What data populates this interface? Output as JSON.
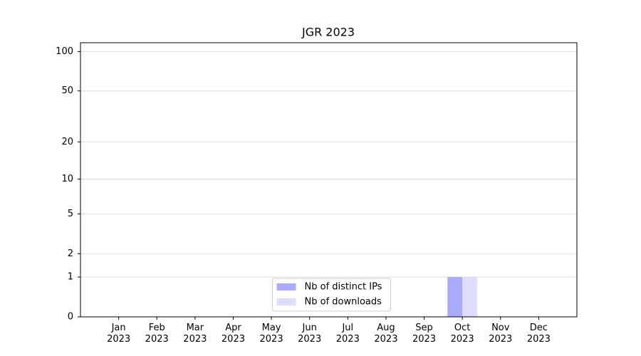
{
  "chart_data": {
    "type": "bar",
    "title": "JGR 2023",
    "categories": [
      "Jan\n2023",
      "Feb\n2023",
      "Mar\n2023",
      "Apr\n2023",
      "May\n2023",
      "Jun\n2023",
      "Jul\n2023",
      "Aug\n2023",
      "Sep\n2023",
      "Oct\n2023",
      "Nov\n2023",
      "Dec\n2023"
    ],
    "series": [
      {
        "name": "Nb of distinct IPs",
        "color": "#aaaaff",
        "values": [
          0,
          0,
          0,
          0,
          0,
          0,
          0,
          0,
          0,
          1,
          0,
          0
        ]
      },
      {
        "name": "Nb of downloads",
        "color": "#ddddff",
        "values": [
          0,
          0,
          0,
          0,
          0,
          0,
          0,
          0,
          0,
          1,
          0,
          0
        ]
      }
    ],
    "yscale": "log1p",
    "ylim": [
      0,
      117
    ],
    "yticks": [
      0,
      1,
      2,
      5,
      10,
      20,
      50,
      100
    ],
    "grid": true,
    "legend": "lower center"
  }
}
